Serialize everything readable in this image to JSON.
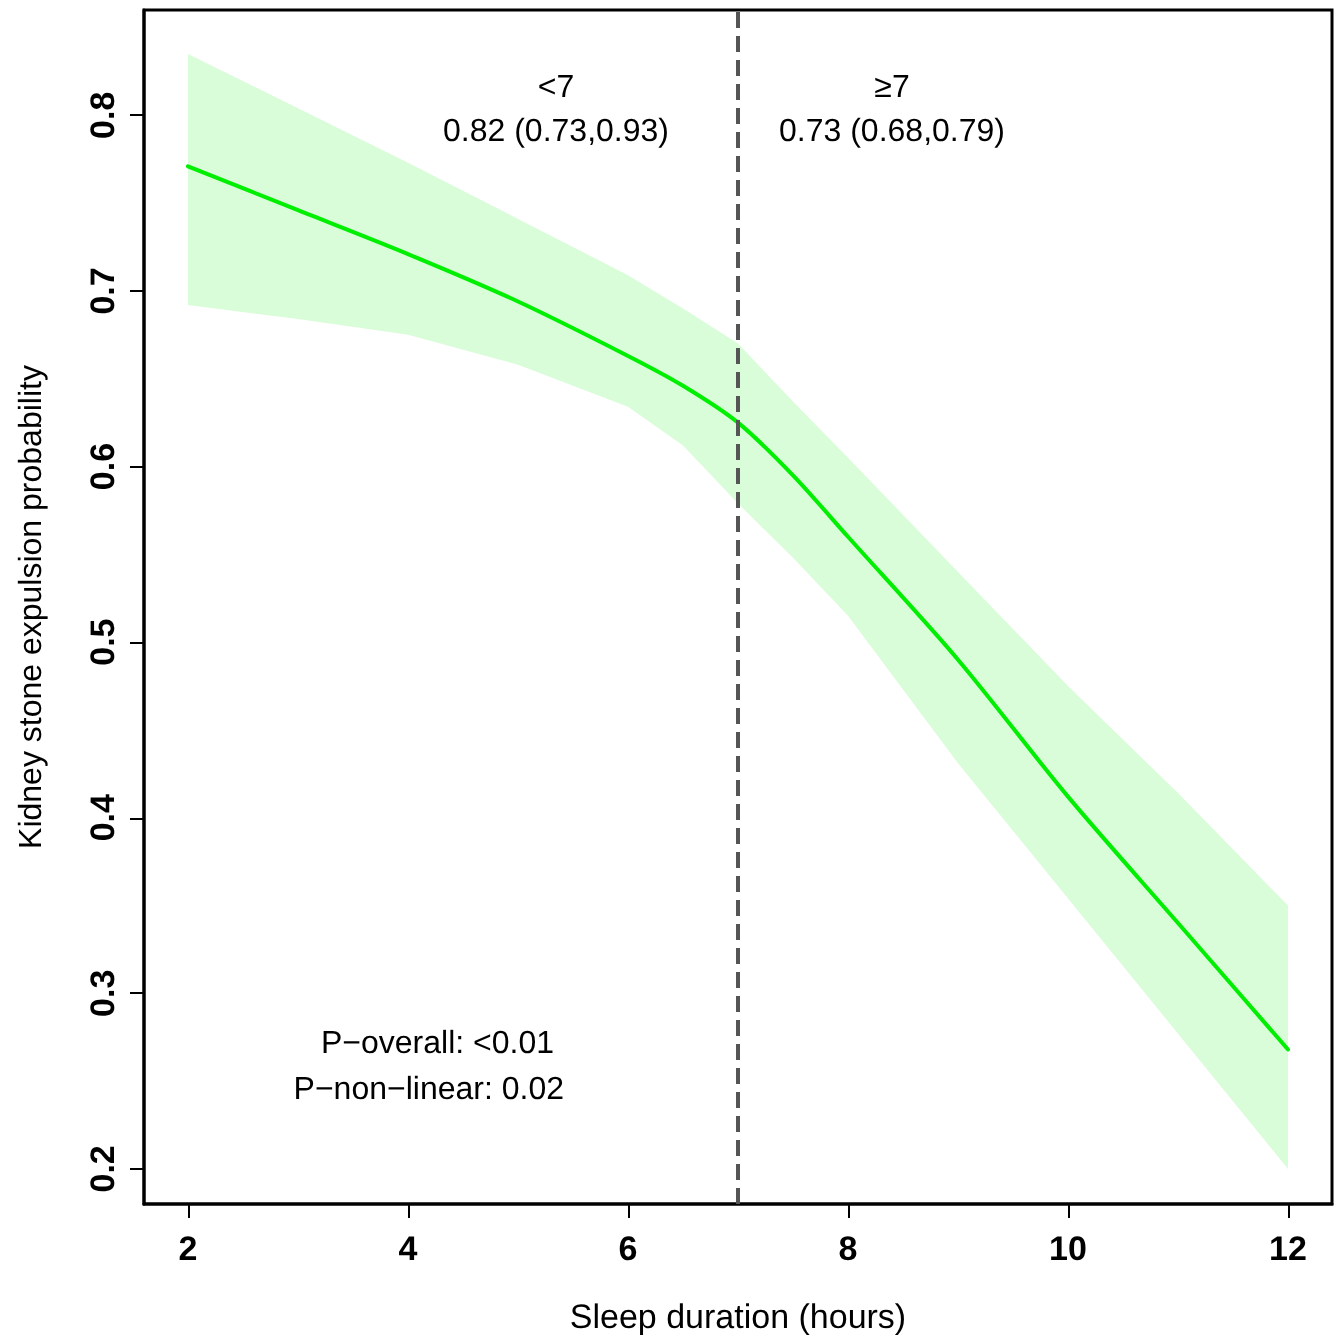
{
  "chart_data": {
    "type": "line",
    "xlabel": "Sleep duration (hours)",
    "ylabel": "Kidney stone expulsion probability",
    "x": [
      2,
      3,
      4,
      5,
      6,
      6.5,
      7,
      7.5,
      8,
      9,
      10,
      11,
      12
    ],
    "series": [
      {
        "color": "#00ee00",
        "values": [
          0.771,
          0.746,
          0.721,
          0.694,
          0.663,
          0.646,
          0.625,
          0.595,
          0.56,
          0.49,
          0.412,
          0.34,
          0.268
        ],
        "lower": [
          0.692,
          0.684,
          0.675,
          0.658,
          0.634,
          0.612,
          0.579,
          0.548,
          0.515,
          0.431,
          0.354,
          0.277,
          0.2
        ],
        "upper": [
          0.835,
          0.804,
          0.773,
          0.741,
          0.709,
          0.69,
          0.67,
          0.637,
          0.605,
          0.54,
          0.475,
          0.414,
          0.35
        ]
      }
    ],
    "xlim": [
      1.6,
      12.4
    ],
    "ylim": [
      0.18,
      0.86
    ],
    "xticks": [
      2,
      4,
      6,
      8,
      10,
      12
    ],
    "yticks": [
      0.2,
      0.3,
      0.4,
      0.5,
      0.6,
      0.7,
      0.8
    ],
    "ref_lines": [
      {
        "axis": "x",
        "value": 7,
        "color": "#555555",
        "line_style": "dashed"
      }
    ],
    "annotations": [
      "<7",
      "0.82 (0.73,0.93)",
      "≥7",
      "0.73 (0.68,0.79)",
      "P−overall: <0.01",
      "P−non−linear: 0.02"
    ],
    "grid": false,
    "marker": "none",
    "line_style": "solid"
  }
}
